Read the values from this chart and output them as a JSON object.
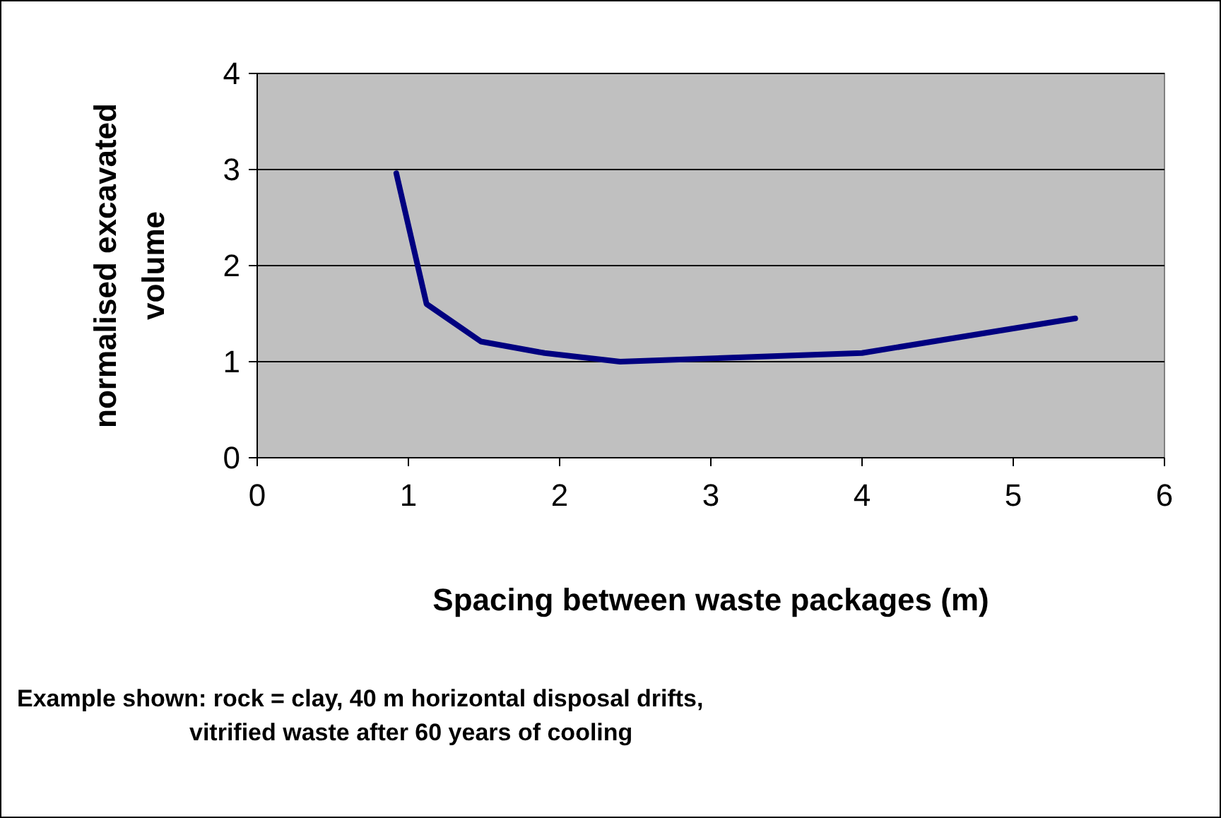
{
  "chart_data": {
    "type": "line",
    "xlabel": "Spacing between waste packages (m)",
    "ylabel": "normalised excavated volume",
    "x": [
      0.92,
      1.12,
      1.48,
      1.9,
      2.4,
      4.0,
      5.41
    ],
    "series": [
      {
        "color": "#000080",
        "values": [
          2.96,
          1.6,
          1.21,
          1.09,
          1.0,
          1.09,
          1.45
        ]
      }
    ],
    "xlim": [
      0,
      6
    ],
    "xticks": [
      0,
      1,
      2,
      3,
      4,
      5,
      6
    ],
    "ylim": [
      0,
      4
    ],
    "yticks": [
      0,
      1,
      2,
      3,
      4
    ],
    "grid": "y",
    "marker": "none",
    "line_style": "solid",
    "annotations": [
      "Example shown: rock = clay, 40 m horizontal disposal drifts,",
      "vitrified waste after 60 years of cooling"
    ]
  }
}
